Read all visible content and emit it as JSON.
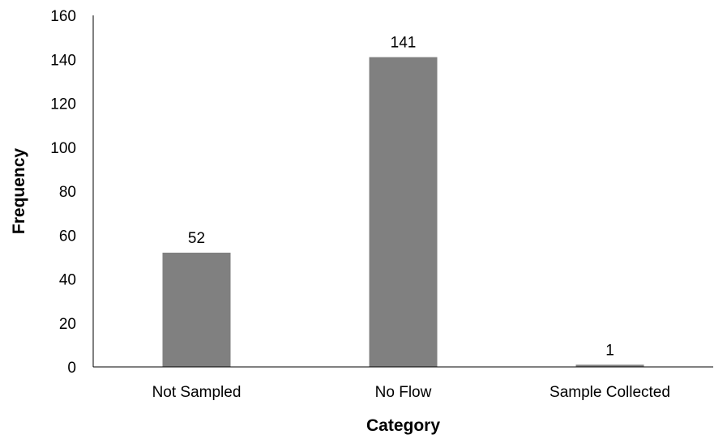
{
  "chart_data": {
    "type": "bar",
    "categories": [
      "Not Sampled",
      "No Flow",
      "Sample Collected"
    ],
    "values": [
      52,
      141,
      1
    ],
    "data_labels": [
      "52",
      "141",
      "1"
    ],
    "title": "",
    "xlabel": "Category",
    "ylabel": "Frequency",
    "ylim": [
      0,
      160
    ],
    "yticks": [
      0,
      20,
      40,
      60,
      80,
      100,
      120,
      140,
      160
    ],
    "grid": false,
    "legend": "none",
    "bar_color": "#808080"
  }
}
